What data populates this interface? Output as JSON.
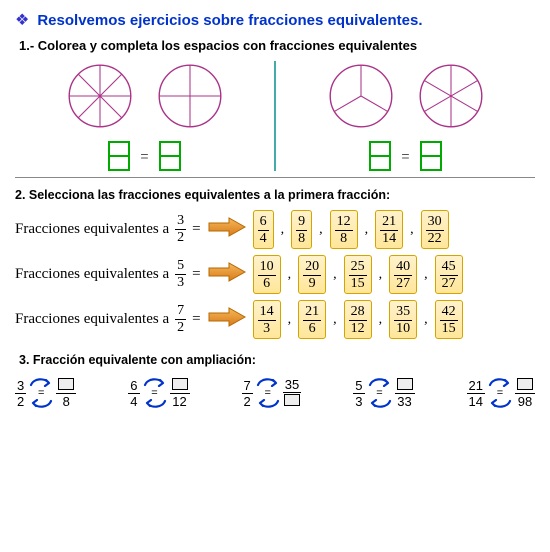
{
  "header": {
    "bullet": "❖",
    "title": "Resolvemos ejercicios sobre fracciones equivalentes.",
    "q1": "1.- Colorea y completa los espacios con fracciones equivalentes"
  },
  "circles": {
    "stroke_left": "#aa3388",
    "stroke_right": "#aa3388",
    "left_a_slices": 8,
    "left_b_slices": 4,
    "right_a_slices": 3,
    "right_b_slices": 6,
    "box_stroke": "#00aa00",
    "divider_color": "#33aaaa"
  },
  "q2": {
    "title": "2. Selecciona las fracciones equivalentes a la primera fracción:",
    "label": "Fracciones equivalentes a",
    "rows": [
      {
        "base": {
          "n": "3",
          "d": "2"
        },
        "opts": [
          {
            "n": "6",
            "d": "4"
          },
          {
            "n": "9",
            "d": "8"
          },
          {
            "n": "12",
            "d": "8"
          },
          {
            "n": "21",
            "d": "14"
          },
          {
            "n": "30",
            "d": "22"
          }
        ]
      },
      {
        "base": {
          "n": "5",
          "d": "3"
        },
        "opts": [
          {
            "n": "10",
            "d": "6"
          },
          {
            "n": "20",
            "d": "9"
          },
          {
            "n": "25",
            "d": "15"
          },
          {
            "n": "40",
            "d": "27"
          },
          {
            "n": "45",
            "d": "27"
          }
        ]
      },
      {
        "base": {
          "n": "7",
          "d": "2"
        },
        "opts": [
          {
            "n": "14",
            "d": "3"
          },
          {
            "n": "21",
            "d": "6"
          },
          {
            "n": "28",
            "d": "12"
          },
          {
            "n": "35",
            "d": "10"
          },
          {
            "n": "42",
            "d": "15"
          }
        ]
      }
    ],
    "arrow_fill": "#e8952e",
    "arrow_stroke": "#b56a00",
    "chip_bg_top": "#fff2cc",
    "chip_bg_bot": "#ffe699",
    "chip_border": "#d4a500"
  },
  "q3": {
    "title": "3. Fracción equivalente con ampliación:",
    "arrow_color": "#0033cc",
    "items": [
      {
        "l": {
          "n": "3",
          "d": "2"
        },
        "r": {
          "n": "",
          "d": "8"
        }
      },
      {
        "l": {
          "n": "6",
          "d": "4"
        },
        "r": {
          "n": "",
          "d": "12"
        }
      },
      {
        "l": {
          "n": "7",
          "d": "2"
        },
        "r": {
          "n": "35",
          "d": ""
        }
      },
      {
        "l": {
          "n": "5",
          "d": "3"
        },
        "r": {
          "n": "",
          "d": "33"
        }
      },
      {
        "l": {
          "n": "21",
          "d": "14"
        },
        "r": {
          "n": "",
          "d": "98"
        }
      }
    ]
  }
}
